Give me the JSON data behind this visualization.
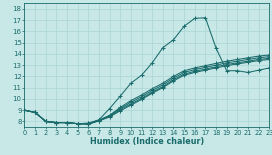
{
  "xlabel": "Humidex (Indice chaleur)",
  "bg_color": "#c8e8e8",
  "grid_color": "#b0d8d8",
  "line_color": "#1a6b6b",
  "xlim": [
    0,
    23
  ],
  "ylim": [
    7.5,
    18.5
  ],
  "xticks": [
    0,
    1,
    2,
    3,
    4,
    5,
    6,
    7,
    8,
    9,
    10,
    11,
    12,
    13,
    14,
    15,
    16,
    17,
    18,
    19,
    20,
    21,
    22,
    23
  ],
  "yticks": [
    8,
    9,
    10,
    11,
    12,
    13,
    14,
    15,
    16,
    17,
    18
  ],
  "lines": [
    {
      "x": [
        0,
        1,
        2,
        3,
        4,
        5,
        6,
        7,
        8,
        9,
        10,
        11,
        12,
        13,
        14,
        15,
        16,
        17,
        18,
        19,
        20,
        21,
        22,
        23
      ],
      "y": [
        9,
        8.8,
        8,
        7.9,
        7.9,
        7.8,
        7.75,
        8.05,
        8.4,
        8.95,
        9.45,
        9.95,
        10.5,
        11.0,
        11.6,
        12.1,
        12.35,
        12.55,
        12.75,
        12.95,
        13.1,
        13.25,
        13.4,
        13.5
      ]
    },
    {
      "x": [
        0,
        1,
        2,
        3,
        4,
        5,
        6,
        7,
        8,
        9,
        10,
        11,
        12,
        13,
        14,
        15,
        16,
        17,
        18,
        19,
        20,
        21,
        22,
        23
      ],
      "y": [
        9,
        8.8,
        8,
        7.9,
        7.9,
        7.8,
        7.78,
        8.08,
        8.45,
        9.05,
        9.55,
        10.05,
        10.6,
        11.1,
        11.7,
        12.2,
        12.45,
        12.65,
        12.85,
        13.05,
        13.2,
        13.35,
        13.5,
        13.6
      ]
    },
    {
      "x": [
        0,
        1,
        2,
        3,
        4,
        5,
        6,
        7,
        8,
        9,
        10,
        11,
        12,
        13,
        14,
        15,
        16,
        17,
        18,
        19,
        20,
        21,
        22,
        23
      ],
      "y": [
        9,
        8.8,
        8,
        7.9,
        7.9,
        7.8,
        7.8,
        8.1,
        8.5,
        9.15,
        9.7,
        10.2,
        10.75,
        11.25,
        11.85,
        12.35,
        12.6,
        12.8,
        13.0,
        13.2,
        13.35,
        13.5,
        13.65,
        13.75
      ]
    },
    {
      "x": [
        0,
        1,
        2,
        3,
        4,
        5,
        6,
        7,
        8,
        9,
        10,
        11,
        12,
        13,
        14,
        15,
        16,
        17,
        18,
        19,
        20,
        21,
        22,
        23
      ],
      "y": [
        9,
        8.8,
        8,
        7.9,
        7.9,
        7.8,
        7.82,
        8.12,
        8.55,
        9.25,
        9.85,
        10.35,
        10.9,
        11.4,
        12.0,
        12.5,
        12.75,
        12.95,
        13.15,
        13.35,
        13.5,
        13.65,
        13.8,
        13.9
      ]
    },
    {
      "x": [
        0,
        1,
        2,
        3,
        4,
        5,
        6,
        7,
        8,
        9,
        10,
        11,
        12,
        13,
        14,
        15,
        16,
        17,
        18,
        19,
        20,
        21,
        22,
        23
      ],
      "y": [
        9,
        8.8,
        8,
        7.9,
        7.9,
        7.8,
        7.85,
        8.15,
        9.15,
        10.25,
        11.4,
        12.1,
        13.2,
        14.55,
        15.25,
        16.45,
        17.15,
        17.2,
        14.5,
        12.5,
        12.5,
        12.35,
        12.55,
        12.75
      ]
    }
  ]
}
